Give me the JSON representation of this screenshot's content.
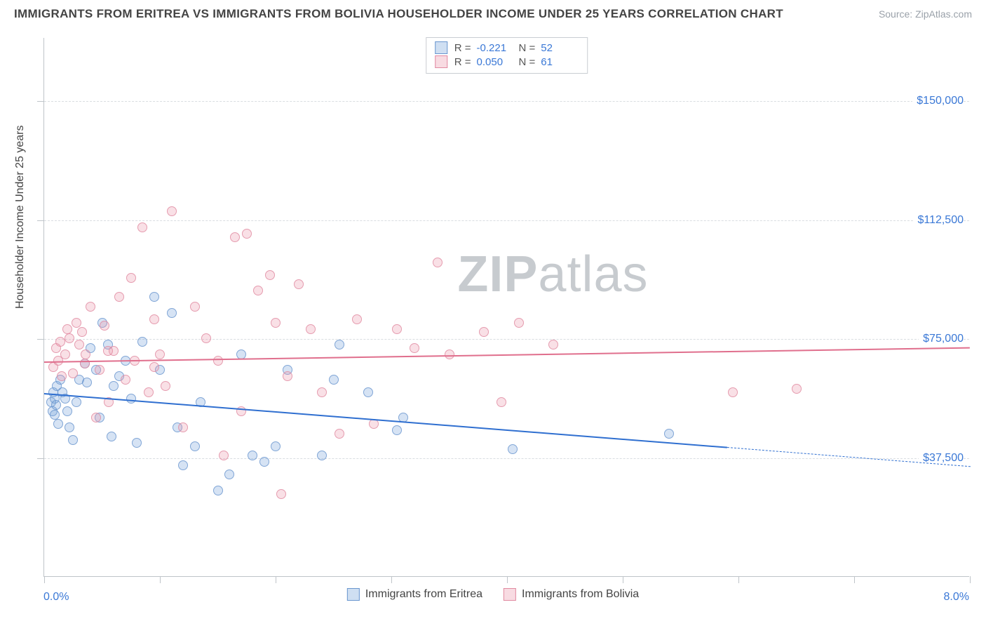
{
  "header": {
    "title": "IMMIGRANTS FROM ERITREA VS IMMIGRANTS FROM BOLIVIA HOUSEHOLDER INCOME UNDER 25 YEARS CORRELATION CHART",
    "source_prefix": "Source: ",
    "source": "ZipAtlas.com"
  },
  "watermark": {
    "zip": "ZIP",
    "atlas": "atlas"
  },
  "axes": {
    "ylabel": "Householder Income Under 25 years",
    "x_left_label": "0.0%",
    "x_right_label": "8.0%",
    "xlim": [
      0,
      8
    ],
    "ylim": [
      0,
      170000
    ],
    "y_ticks": [
      37500,
      75000,
      112500,
      150000
    ],
    "y_tick_labels": [
      "$37,500",
      "$75,000",
      "$112,500",
      "$150,000"
    ],
    "x_tick_positions": [
      0,
      1,
      2,
      3,
      4,
      5,
      6,
      7,
      8
    ],
    "y_minor_tick_positions": [
      37500,
      75000,
      112500,
      150000
    ],
    "grid_color": "#d9dde1",
    "axis_color": "#bfc4c9"
  },
  "series": [
    {
      "id": "eritrea",
      "label": "Immigrants from Eritrea",
      "color_fill": "rgba(118,162,217,0.35)",
      "color_stroke": "#6a96cf",
      "trend_color": "#2f6fd0",
      "r": "-0.221",
      "n": "52",
      "trend_y_at_x0": 58000,
      "trend_y_at_x8": 35000,
      "trend_solid_until_x": 5.9,
      "points": [
        [
          0.06,
          55000
        ],
        [
          0.07,
          52000
        ],
        [
          0.08,
          58000
        ],
        [
          0.09,
          51000
        ],
        [
          0.09,
          56000
        ],
        [
          0.1,
          54000
        ],
        [
          0.11,
          60000
        ],
        [
          0.12,
          48000
        ],
        [
          0.14,
          62000
        ],
        [
          0.16,
          58000
        ],
        [
          0.18,
          56000
        ],
        [
          0.2,
          52000
        ],
        [
          0.22,
          47000
        ],
        [
          0.25,
          43000
        ],
        [
          0.28,
          55000
        ],
        [
          0.3,
          62000
        ],
        [
          0.35,
          67000
        ],
        [
          0.37,
          61000
        ],
        [
          0.4,
          72000
        ],
        [
          0.45,
          65000
        ],
        [
          0.48,
          50000
        ],
        [
          0.5,
          80000
        ],
        [
          0.55,
          73000
        ],
        [
          0.58,
          44000
        ],
        [
          0.6,
          60000
        ],
        [
          0.65,
          63000
        ],
        [
          0.7,
          68000
        ],
        [
          0.75,
          56000
        ],
        [
          0.8,
          42000
        ],
        [
          0.85,
          74000
        ],
        [
          0.95,
          88000
        ],
        [
          1.0,
          65000
        ],
        [
          1.1,
          83000
        ],
        [
          1.15,
          47000
        ],
        [
          1.2,
          35000
        ],
        [
          1.3,
          41000
        ],
        [
          1.35,
          55000
        ],
        [
          1.5,
          27000
        ],
        [
          1.6,
          32000
        ],
        [
          1.7,
          70000
        ],
        [
          1.8,
          38000
        ],
        [
          1.9,
          36000
        ],
        [
          2.0,
          41000
        ],
        [
          2.1,
          65000
        ],
        [
          2.4,
          38000
        ],
        [
          2.5,
          62000
        ],
        [
          2.55,
          73000
        ],
        [
          2.8,
          58000
        ],
        [
          3.05,
          46000
        ],
        [
          3.1,
          50000
        ],
        [
          4.05,
          40000
        ],
        [
          5.4,
          45000
        ]
      ]
    },
    {
      "id": "bolivia",
      "label": "Immigrants from Bolivia",
      "color_fill": "rgba(236,152,173,0.35)",
      "color_stroke": "#e18aa1",
      "trend_color": "#e06f8d",
      "r": "0.050",
      "n": "61",
      "trend_y_at_x0": 68000,
      "trend_y_at_x8": 72500,
      "trend_solid_until_x": 8,
      "points": [
        [
          0.08,
          66000
        ],
        [
          0.1,
          72000
        ],
        [
          0.12,
          68000
        ],
        [
          0.14,
          74000
        ],
        [
          0.15,
          63000
        ],
        [
          0.18,
          70000
        ],
        [
          0.2,
          78000
        ],
        [
          0.22,
          75000
        ],
        [
          0.25,
          64000
        ],
        [
          0.28,
          80000
        ],
        [
          0.3,
          73000
        ],
        [
          0.33,
          77000
        ],
        [
          0.36,
          70000
        ],
        [
          0.4,
          85000
        ],
        [
          0.45,
          50000
        ],
        [
          0.48,
          65000
        ],
        [
          0.52,
          79000
        ],
        [
          0.56,
          55000
        ],
        [
          0.6,
          71000
        ],
        [
          0.65,
          88000
        ],
        [
          0.7,
          62000
        ],
        [
          0.75,
          94000
        ],
        [
          0.78,
          68000
        ],
        [
          0.85,
          110000
        ],
        [
          0.9,
          58000
        ],
        [
          0.95,
          81000
        ],
        [
          1.0,
          70000
        ],
        [
          1.05,
          60000
        ],
        [
          1.1,
          115000
        ],
        [
          1.2,
          47000
        ],
        [
          1.3,
          85000
        ],
        [
          1.4,
          75000
        ],
        [
          1.5,
          68000
        ],
        [
          1.55,
          38000
        ],
        [
          1.65,
          107000
        ],
        [
          1.7,
          52000
        ],
        [
          1.75,
          108000
        ],
        [
          1.85,
          90000
        ],
        [
          1.95,
          95000
        ],
        [
          2.0,
          80000
        ],
        [
          2.05,
          26000
        ],
        [
          2.1,
          63000
        ],
        [
          2.2,
          92000
        ],
        [
          2.3,
          78000
        ],
        [
          2.4,
          58000
        ],
        [
          2.55,
          45000
        ],
        [
          2.7,
          81000
        ],
        [
          2.85,
          48000
        ],
        [
          3.05,
          78000
        ],
        [
          3.2,
          72000
        ],
        [
          3.4,
          99000
        ],
        [
          3.5,
          70000
        ],
        [
          3.8,
          77000
        ],
        [
          3.95,
          55000
        ],
        [
          4.1,
          80000
        ],
        [
          4.4,
          73000
        ],
        [
          5.95,
          58000
        ],
        [
          6.5,
          59000
        ],
        [
          0.35,
          67000
        ],
        [
          0.55,
          71000
        ],
        [
          0.95,
          66000
        ]
      ]
    }
  ],
  "legend_top": {
    "r_label": "R =",
    "n_label": "N ="
  }
}
